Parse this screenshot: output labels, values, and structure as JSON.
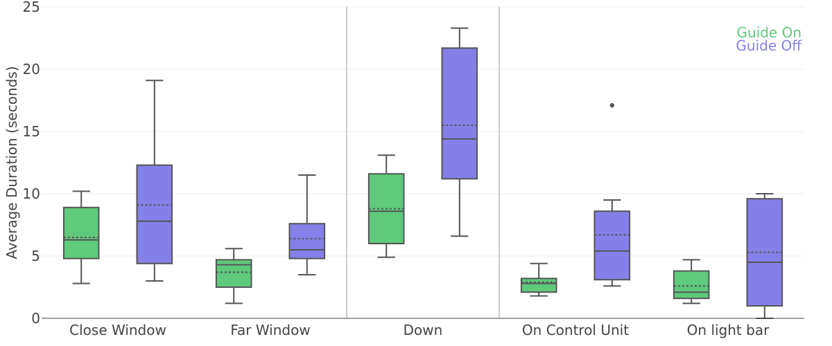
{
  "chart_data": {
    "type": "box",
    "ylabel": "Average Duration (seconds)",
    "xlabel": "",
    "ylim": [
      0,
      25
    ],
    "yticks": [
      0,
      5,
      10,
      15,
      20,
      25
    ],
    "grid": true,
    "legend_position": "top-right",
    "categories": [
      "Close Window",
      "Far Window",
      "Down",
      "On Control Unit",
      "On light bar"
    ],
    "group_separators_after": [
      "Far Window",
      "Down"
    ],
    "series": [
      {
        "name": "Guide On",
        "color": "#5fc97c",
        "boxes": [
          {
            "min": 2.8,
            "q1": 4.8,
            "median": 6.3,
            "mean": 6.5,
            "q3": 8.9,
            "max": 10.2,
            "outliers": []
          },
          {
            "min": 1.2,
            "q1": 2.5,
            "median": 4.3,
            "mean": 3.7,
            "q3": 4.7,
            "max": 5.6,
            "outliers": []
          },
          {
            "min": 4.9,
            "q1": 6.0,
            "median": 8.6,
            "mean": 8.8,
            "q3": 11.6,
            "max": 13.1,
            "outliers": []
          },
          {
            "min": 1.8,
            "q1": 2.1,
            "median": 2.8,
            "mean": 2.9,
            "q3": 3.2,
            "max": 4.4,
            "outliers": []
          },
          {
            "min": 1.2,
            "q1": 1.6,
            "median": 2.1,
            "mean": 2.6,
            "q3": 3.8,
            "max": 4.7,
            "outliers": []
          }
        ]
      },
      {
        "name": "Guide Off",
        "color": "#8480e8",
        "boxes": [
          {
            "min": 3.0,
            "q1": 4.4,
            "median": 7.8,
            "mean": 9.1,
            "q3": 12.3,
            "max": 19.1,
            "outliers": []
          },
          {
            "min": 3.5,
            "q1": 4.8,
            "median": 5.5,
            "mean": 6.4,
            "q3": 7.6,
            "max": 11.5,
            "outliers": []
          },
          {
            "min": 6.6,
            "q1": 11.2,
            "median": 14.4,
            "mean": 15.5,
            "q3": 21.7,
            "max": 23.3,
            "outliers": []
          },
          {
            "min": 2.6,
            "q1": 3.1,
            "median": 5.4,
            "mean": 6.7,
            "q3": 8.6,
            "max": 9.5,
            "outliers": [
              17.1
            ]
          },
          {
            "min": 0.0,
            "q1": 1.0,
            "median": 4.5,
            "mean": 5.3,
            "q3": 9.6,
            "max": 10.0,
            "outliers": []
          }
        ]
      }
    ]
  }
}
